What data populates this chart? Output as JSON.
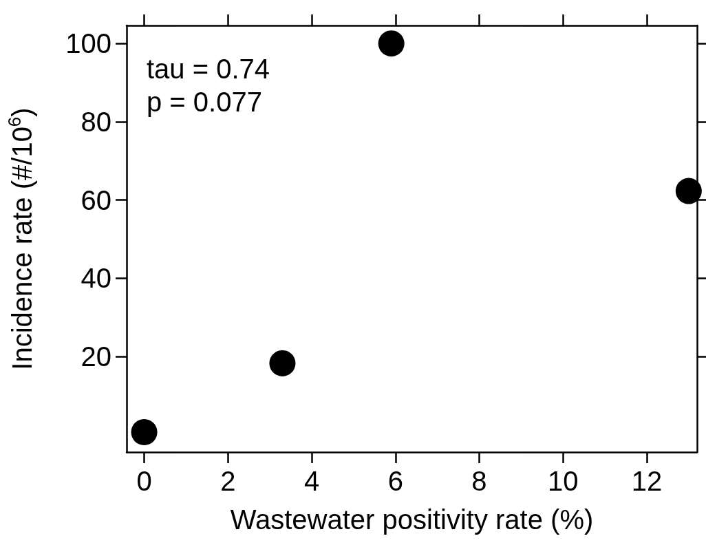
{
  "chart_data": {
    "type": "scatter",
    "xlabel": "Wastewater positivity rate (%)",
    "ylabel": "Incidence rate (#/10$^{6}$)",
    "x": [
      0,
      3.3,
      5.9,
      13
    ],
    "values": [
      0.7,
      18.3,
      100,
      62.3
    ],
    "color": "#000000",
    "marker": "circle",
    "grid": false,
    "xlim": [
      -0.42,
      13.2
    ],
    "xticks": [
      0,
      2,
      4,
      6,
      8,
      10,
      12
    ],
    "ylim": [
      -4.4,
      104.6
    ],
    "yticks": [
      20,
      40,
      60,
      80,
      100
    ],
    "annotations": [
      "tau = 0.74",
      "p = 0.077"
    ]
  }
}
